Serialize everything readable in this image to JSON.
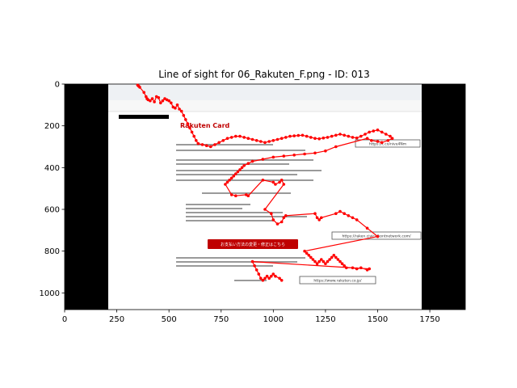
{
  "chart_data": {
    "type": "scatter",
    "title": "Line of sight for 06_Rakuten_F.png - ID: 013",
    "xlabel": "",
    "ylabel": "",
    "xlim": [
      0,
      1920
    ],
    "ylim": [
      1080,
      0
    ],
    "y_inverted": true,
    "x_ticks": [
      0,
      250,
      500,
      750,
      1000,
      1250,
      1500,
      1750
    ],
    "y_ticks": [
      0,
      200,
      400,
      600,
      800,
      1000
    ],
    "grid": false,
    "colors": {
      "gaze": "#ff0000",
      "frame": "#000000",
      "background_image": "#ffffff"
    },
    "background_image": {
      "description_role": "screenshot-stimulus",
      "extent": [
        0,
        1920,
        1080,
        0
      ],
      "content_extent": [
        210,
        1720,
        1080,
        0
      ],
      "brand": "Rakuten Card",
      "urls": [
        "https://t.co/nive4Nm",
        "https://raken.civicalkontnetwork.com/",
        "https://www.rakuten.co.jp/"
      ],
      "cta_button": "お支払い方法の変更・修正はこちら"
    },
    "series": [
      {
        "points": [
          [
            350,
            5
          ],
          [
            355,
            10
          ],
          [
            360,
            15
          ],
          [
            380,
            40
          ],
          [
            390,
            60
          ],
          [
            395,
            70
          ],
          [
            400,
            75
          ],
          [
            410,
            80
          ],
          [
            420,
            70
          ],
          [
            430,
            85
          ],
          [
            440,
            60
          ],
          [
            450,
            65
          ],
          [
            460,
            90
          ],
          [
            470,
            80
          ],
          [
            480,
            70
          ],
          [
            490,
            75
          ],
          [
            500,
            80
          ],
          [
            510,
            90
          ],
          [
            520,
            110
          ],
          [
            530,
            115
          ],
          [
            540,
            100
          ],
          [
            550,
            120
          ],
          [
            560,
            130
          ],
          [
            570,
            150
          ],
          [
            580,
            170
          ],
          [
            590,
            190
          ],
          [
            600,
            210
          ],
          [
            610,
            230
          ],
          [
            620,
            250
          ],
          [
            630,
            270
          ],
          [
            640,
            285
          ],
          [
            660,
            290
          ],
          [
            680,
            295
          ],
          [
            700,
            300
          ],
          [
            720,
            290
          ],
          [
            740,
            280
          ],
          [
            760,
            270
          ],
          [
            780,
            260
          ],
          [
            800,
            255
          ],
          [
            820,
            250
          ],
          [
            840,
            250
          ],
          [
            860,
            255
          ],
          [
            880,
            260
          ],
          [
            900,
            265
          ],
          [
            920,
            270
          ],
          [
            940,
            275
          ],
          [
            960,
            280
          ],
          [
            980,
            275
          ],
          [
            1000,
            270
          ],
          [
            1020,
            265
          ],
          [
            1040,
            260
          ],
          [
            1060,
            255
          ],
          [
            1080,
            250
          ],
          [
            1100,
            248
          ],
          [
            1120,
            246
          ],
          [
            1140,
            245
          ],
          [
            1160,
            250
          ],
          [
            1180,
            255
          ],
          [
            1200,
            260
          ],
          [
            1220,
            262
          ],
          [
            1240,
            258
          ],
          [
            1260,
            255
          ],
          [
            1280,
            250
          ],
          [
            1300,
            245
          ],
          [
            1320,
            240
          ],
          [
            1340,
            245
          ],
          [
            1360,
            250
          ],
          [
            1380,
            255
          ],
          [
            1400,
            258
          ],
          [
            1420,
            250
          ],
          [
            1440,
            240
          ],
          [
            1460,
            230
          ],
          [
            1480,
            225
          ],
          [
            1500,
            220
          ],
          [
            1520,
            230
          ],
          [
            1540,
            240
          ],
          [
            1560,
            250
          ],
          [
            1570,
            260
          ],
          [
            1550,
            270
          ],
          [
            1520,
            280
          ],
          [
            1500,
            275
          ],
          [
            1470,
            270
          ],
          [
            1450,
            260
          ],
          [
            1300,
            300
          ],
          [
            1250,
            320
          ],
          [
            1200,
            330
          ],
          [
            1150,
            335
          ],
          [
            1100,
            340
          ],
          [
            1050,
            345
          ],
          [
            1000,
            350
          ],
          [
            950,
            360
          ],
          [
            900,
            370
          ],
          [
            880,
            380
          ],
          [
            860,
            390
          ],
          [
            850,
            400
          ],
          [
            840,
            410
          ],
          [
            830,
            420
          ],
          [
            820,
            430
          ],
          [
            810,
            440
          ],
          [
            800,
            450
          ],
          [
            790,
            460
          ],
          [
            780,
            470
          ],
          [
            770,
            480
          ],
          [
            800,
            530
          ],
          [
            820,
            535
          ],
          [
            870,
            530
          ],
          [
            880,
            535
          ],
          [
            950,
            460
          ],
          [
            1000,
            470
          ],
          [
            1010,
            480
          ],
          [
            1030,
            470
          ],
          [
            1040,
            460
          ],
          [
            1050,
            480
          ],
          [
            960,
            600
          ],
          [
            990,
            620
          ],
          [
            1000,
            650
          ],
          [
            1020,
            670
          ],
          [
            1040,
            660
          ],
          [
            1050,
            640
          ],
          [
            1060,
            630
          ],
          [
            1200,
            620
          ],
          [
            1210,
            640
          ],
          [
            1220,
            650
          ],
          [
            1230,
            640
          ],
          [
            1300,
            620
          ],
          [
            1320,
            610
          ],
          [
            1340,
            620
          ],
          [
            1360,
            630
          ],
          [
            1380,
            640
          ],
          [
            1400,
            650
          ],
          [
            1450,
            690
          ],
          [
            1500,
            730
          ],
          [
            1150,
            800
          ],
          [
            1160,
            810
          ],
          [
            1170,
            820
          ],
          [
            1180,
            830
          ],
          [
            1190,
            840
          ],
          [
            1200,
            850
          ],
          [
            1210,
            860
          ],
          [
            1220,
            850
          ],
          [
            1230,
            840
          ],
          [
            1240,
            850
          ],
          [
            1250,
            860
          ],
          [
            1260,
            850
          ],
          [
            1270,
            840
          ],
          [
            1280,
            830
          ],
          [
            1290,
            820
          ],
          [
            1300,
            830
          ],
          [
            1310,
            840
          ],
          [
            1320,
            850
          ],
          [
            1330,
            860
          ],
          [
            1340,
            870
          ],
          [
            1350,
            880
          ],
          [
            1380,
            880
          ],
          [
            1400,
            885
          ],
          [
            1420,
            880
          ],
          [
            1450,
            890
          ],
          [
            1460,
            885
          ],
          [
            900,
            850
          ],
          [
            910,
            870
          ],
          [
            920,
            890
          ],
          [
            930,
            910
          ],
          [
            940,
            930
          ],
          [
            950,
            940
          ],
          [
            960,
            930
          ],
          [
            970,
            920
          ],
          [
            980,
            930
          ],
          [
            990,
            920
          ],
          [
            1000,
            910
          ],
          [
            1010,
            920
          ],
          [
            1030,
            930
          ],
          [
            1040,
            940
          ]
        ]
      }
    ]
  }
}
